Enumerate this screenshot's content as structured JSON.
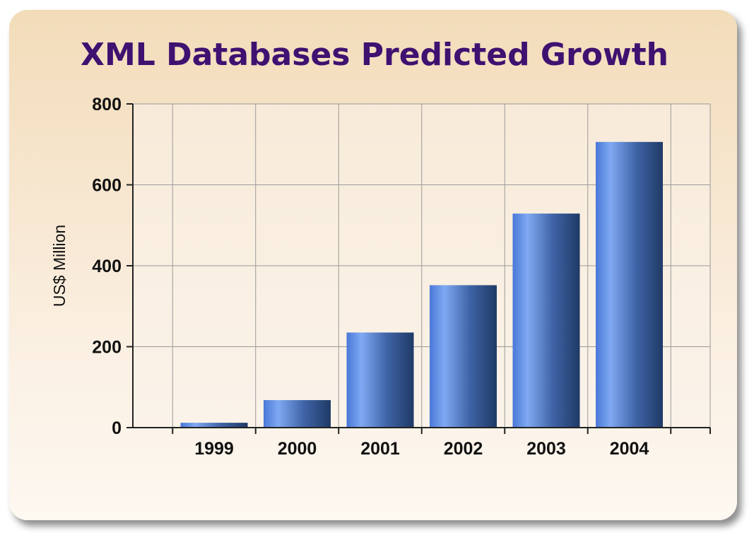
{
  "colors": {
    "title": "#3f1170",
    "bar_light": "#7fa9f2",
    "bar_dark": "#1f3a66",
    "grid": "#9a9a9a",
    "axis": "#222222"
  },
  "chart_data": {
    "type": "bar",
    "title": "XML Databases Predicted Growth",
    "xlabel": "",
    "ylabel": "US$ Million",
    "categories": [
      "1999",
      "2000",
      "2001",
      "2002",
      "2003",
      "2004"
    ],
    "values": [
      12,
      68,
      235,
      352,
      529,
      706
    ],
    "ylim": [
      0,
      800
    ],
    "yticks": [
      "0",
      "200",
      "400",
      "600",
      "800"
    ],
    "grid": true,
    "legend": "none"
  }
}
